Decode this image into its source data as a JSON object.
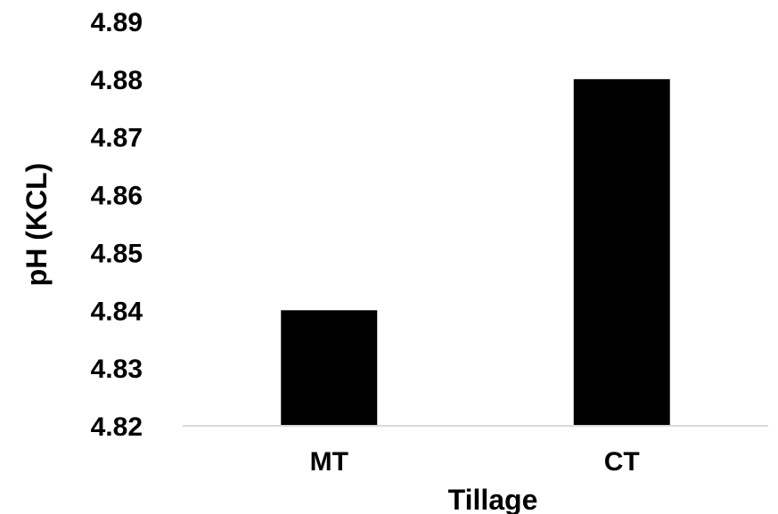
{
  "chart_data": {
    "type": "bar",
    "categories": [
      "MT",
      "CT"
    ],
    "values": [
      4.84,
      4.88
    ],
    "xlabel": "Tillage",
    "ylabel": "pH (KCL)",
    "ylim": [
      4.82,
      4.89
    ],
    "yticks": [
      "4.82",
      "4.83",
      "4.84",
      "4.85",
      "4.86",
      "4.87",
      "4.88",
      "4.89"
    ],
    "grid": false,
    "bar_color": "#000000",
    "axis_color": "#d9d9d9"
  }
}
